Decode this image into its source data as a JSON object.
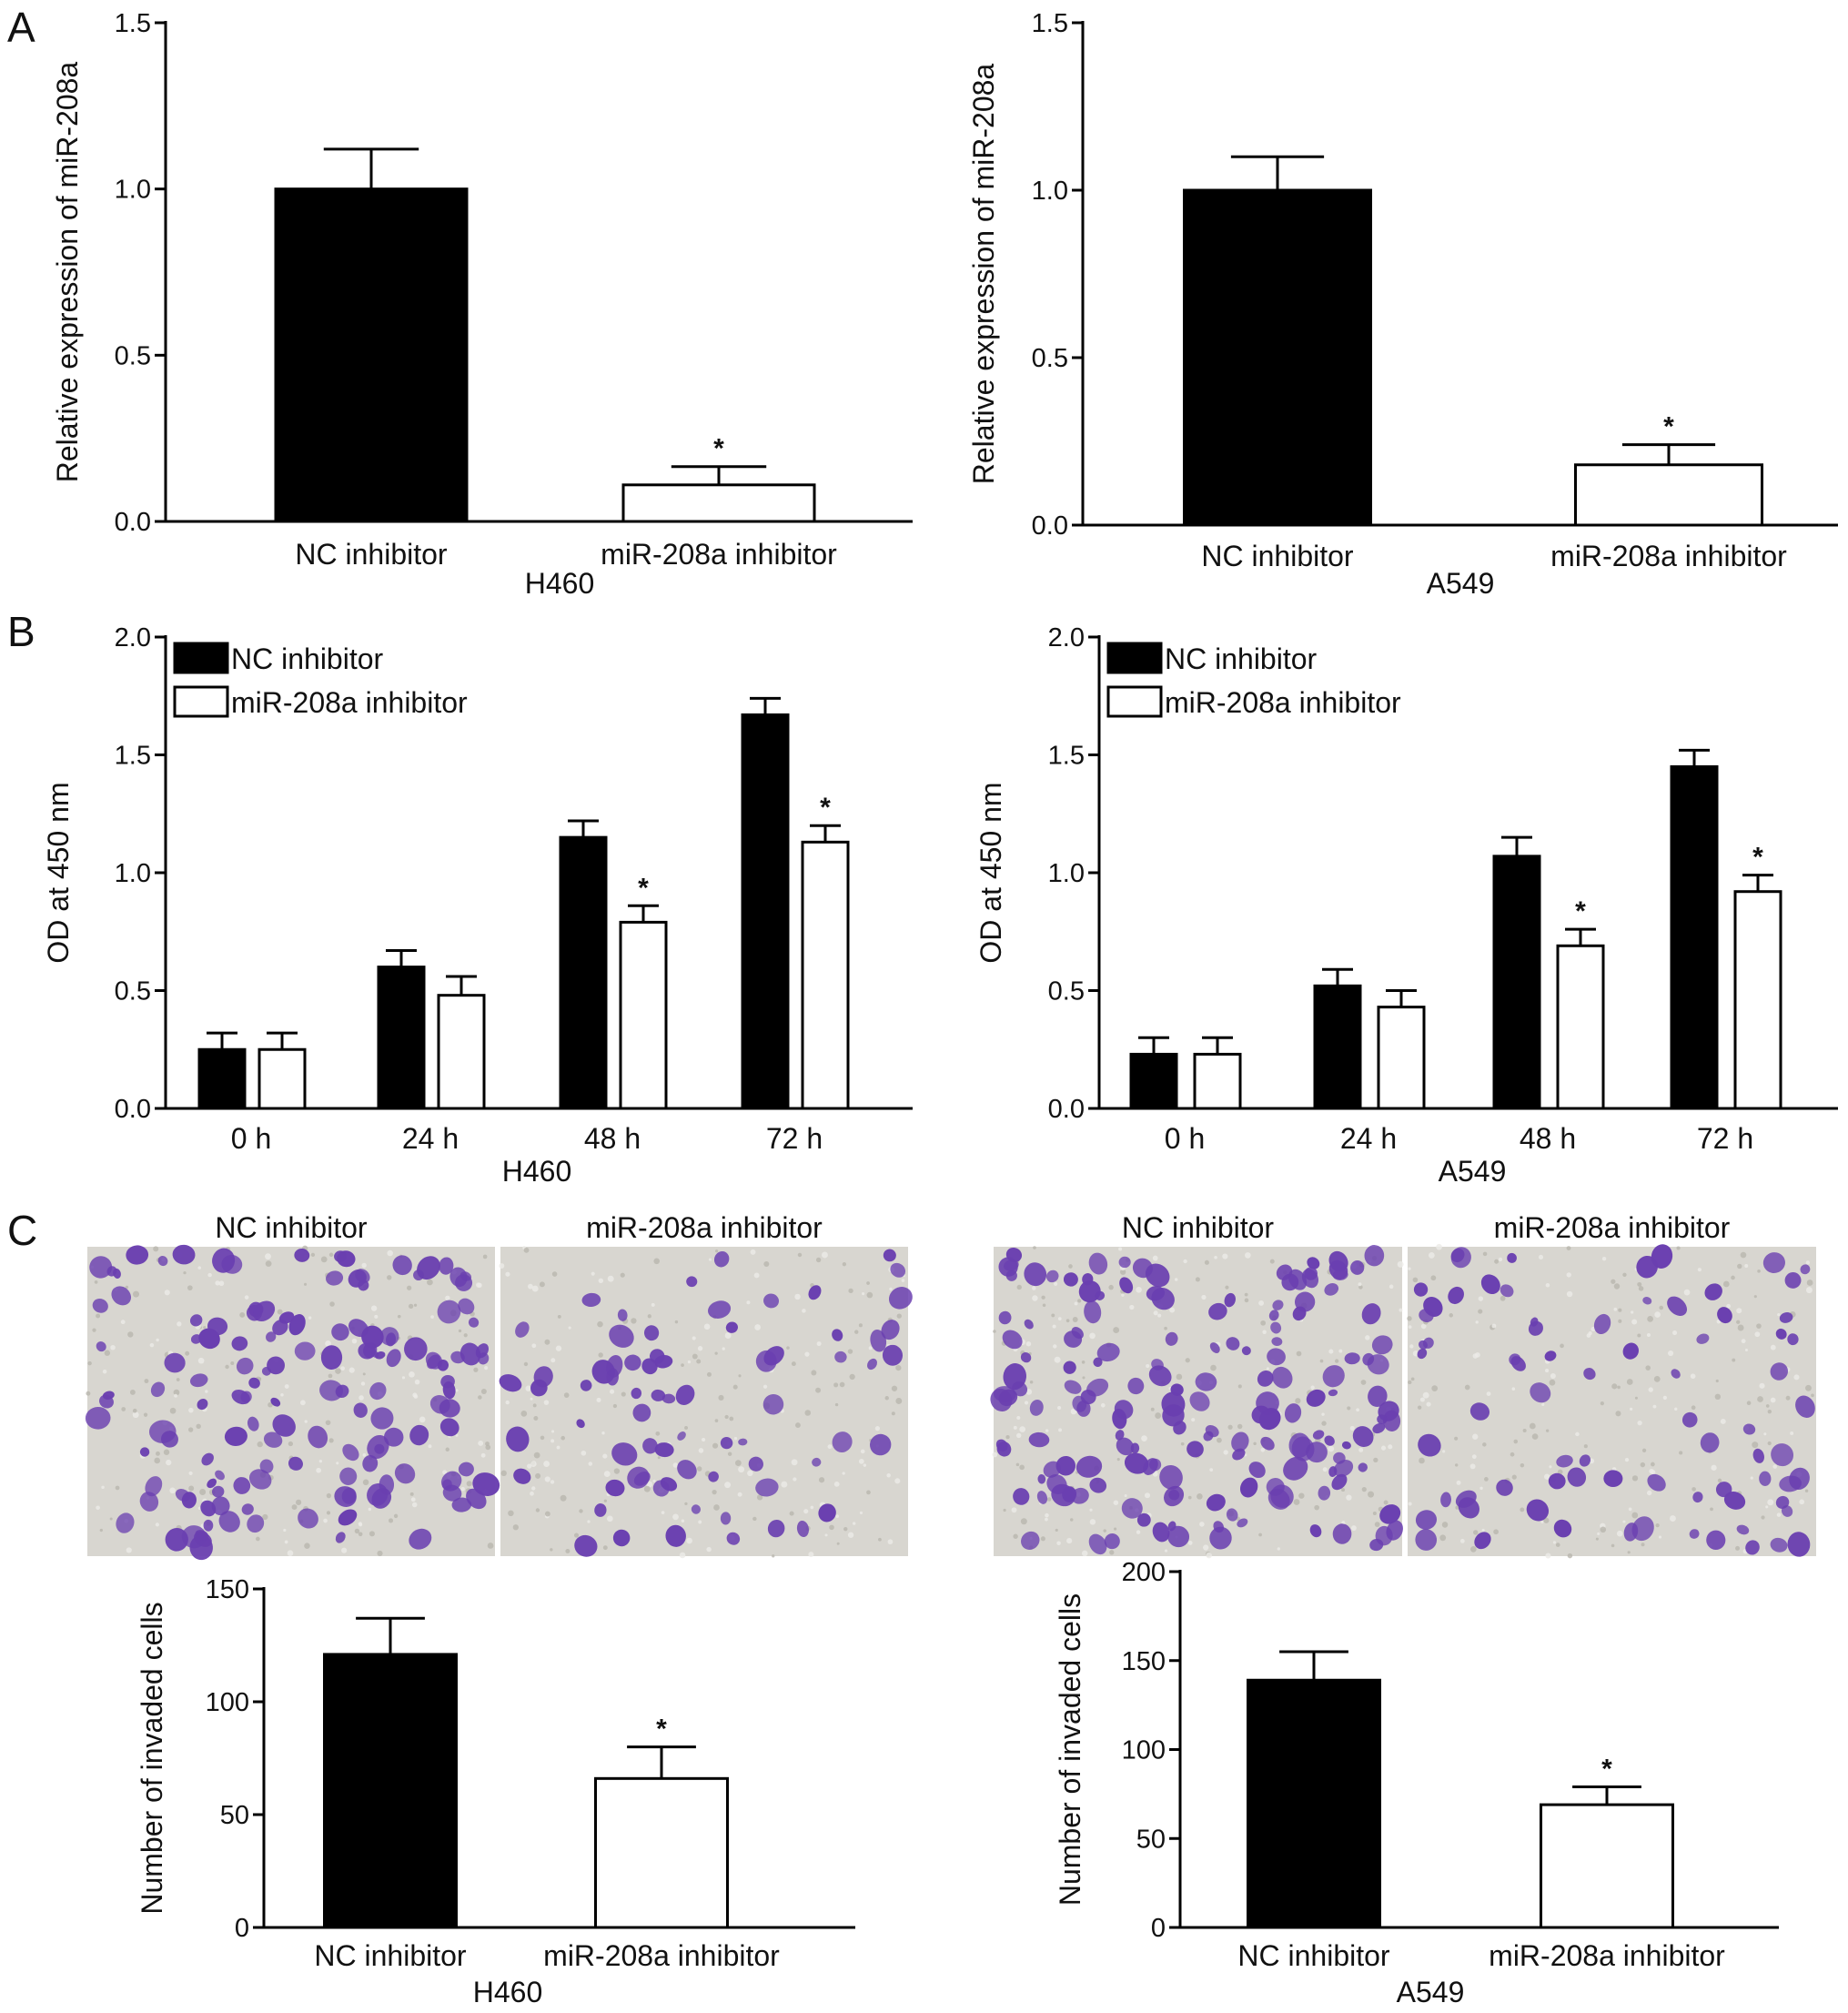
{
  "panel_labels": [
    "A",
    "B",
    "C"
  ],
  "colors": {
    "nc_inhibitor": "#000000",
    "mir208a_inhibitor": "#ffffff",
    "stain": "#6a3fb0",
    "micrograph_background": "#d8d6d0"
  },
  "micrographs": [
    {
      "cell_line": "H460",
      "titles": [
        "NC inhibitor",
        "miR-208a inhibitor"
      ],
      "density": [
        140,
        70
      ]
    },
    {
      "cell_line": "A549",
      "titles": [
        "NC inhibitor",
        "miR-208a inhibitor"
      ],
      "density": [
        160,
        75
      ]
    }
  ],
  "chart_data": [
    {
      "panel": "A",
      "type": "bar",
      "categories": [
        "NC inhibitor",
        "miR-208a inhibitor"
      ],
      "values": [
        1.0,
        0.11
      ],
      "errors": [
        0.12,
        0.055
      ],
      "significance": [
        "",
        "*"
      ],
      "ylabel": "Relative expression of miR-208a",
      "xlabel": "H460",
      "ylim": [
        0,
        1.5
      ],
      "yticks": [
        0.0,
        0.5,
        1.0,
        1.5
      ],
      "ytick_labels": [
        "0.0",
        "0.5",
        "1.0",
        "1.5"
      ]
    },
    {
      "panel": "A",
      "type": "bar",
      "categories": [
        "NC inhibitor",
        "miR-208a inhibitor"
      ],
      "values": [
        1.0,
        0.18
      ],
      "errors": [
        0.1,
        0.06
      ],
      "significance": [
        "",
        "*"
      ],
      "ylabel": "Relative expression of miR-208a",
      "xlabel": "A549",
      "ylim": [
        0,
        1.5
      ],
      "yticks": [
        0.0,
        0.5,
        1.0,
        1.5
      ],
      "ytick_labels": [
        "0.0",
        "0.5",
        "1.0",
        "1.5"
      ]
    },
    {
      "panel": "B",
      "type": "bar",
      "categories": [
        "0 h",
        "24 h",
        "48 h",
        "72 h"
      ],
      "series": [
        {
          "name": "NC inhibitor",
          "values": [
            0.25,
            0.6,
            1.15,
            1.67
          ],
          "errors": [
            0.07,
            0.07,
            0.07,
            0.07
          ],
          "significance": [
            "",
            "",
            "",
            ""
          ]
        },
        {
          "name": "miR-208a inhibitor",
          "values": [
            0.25,
            0.48,
            0.79,
            1.13
          ],
          "errors": [
            0.07,
            0.08,
            0.07,
            0.07
          ],
          "significance": [
            "",
            "",
            "*",
            "*"
          ]
        }
      ],
      "legend_position": "top-left",
      "ylabel": "OD at 450 nm",
      "xlabel": "H460",
      "ylim": [
        0,
        2.0
      ],
      "yticks": [
        0.0,
        0.5,
        1.0,
        1.5,
        2.0
      ],
      "ytick_labels": [
        "0.0",
        "0.5",
        "1.0",
        "1.5",
        "2.0"
      ]
    },
    {
      "panel": "B",
      "type": "bar",
      "categories": [
        "0 h",
        "24 h",
        "48 h",
        "72 h"
      ],
      "series": [
        {
          "name": "NC inhibitor",
          "values": [
            0.23,
            0.52,
            1.07,
            1.45
          ],
          "errors": [
            0.07,
            0.07,
            0.08,
            0.07
          ],
          "significance": [
            "",
            "",
            "",
            ""
          ]
        },
        {
          "name": "miR-208a inhibitor",
          "values": [
            0.23,
            0.43,
            0.69,
            0.92
          ],
          "errors": [
            0.07,
            0.07,
            0.07,
            0.07
          ],
          "significance": [
            "",
            "",
            "*",
            "*"
          ]
        }
      ],
      "legend_position": "top-left",
      "ylabel": "OD at 450 nm",
      "xlabel": "A549",
      "ylim": [
        0,
        2.0
      ],
      "yticks": [
        0.0,
        0.5,
        1.0,
        1.5,
        2.0
      ],
      "ytick_labels": [
        "0.0",
        "0.5",
        "1.0",
        "1.5",
        "2.0"
      ]
    },
    {
      "panel": "C",
      "type": "bar",
      "categories": [
        "NC inhibitor",
        "miR-208a inhibitor"
      ],
      "values": [
        121,
        66
      ],
      "errors": [
        16,
        14
      ],
      "significance": [
        "",
        "*"
      ],
      "ylabel": "Number of invaded cells",
      "xlabel": "H460",
      "ylim": [
        0,
        150
      ],
      "yticks": [
        0,
        50,
        100,
        150
      ],
      "ytick_labels": [
        "0",
        "50",
        "100",
        "150"
      ]
    },
    {
      "panel": "C",
      "type": "bar",
      "categories": [
        "NC inhibitor",
        "miR-208a inhibitor"
      ],
      "values": [
        139,
        69
      ],
      "errors": [
        16,
        10
      ],
      "significance": [
        "",
        "*"
      ],
      "ylabel": "Number of invaded cells",
      "xlabel": "A549",
      "ylim": [
        0,
        200
      ],
      "yticks": [
        0,
        50,
        100,
        150,
        200
      ],
      "ytick_labels": [
        "0",
        "50",
        "100",
        "150",
        "200"
      ]
    }
  ]
}
